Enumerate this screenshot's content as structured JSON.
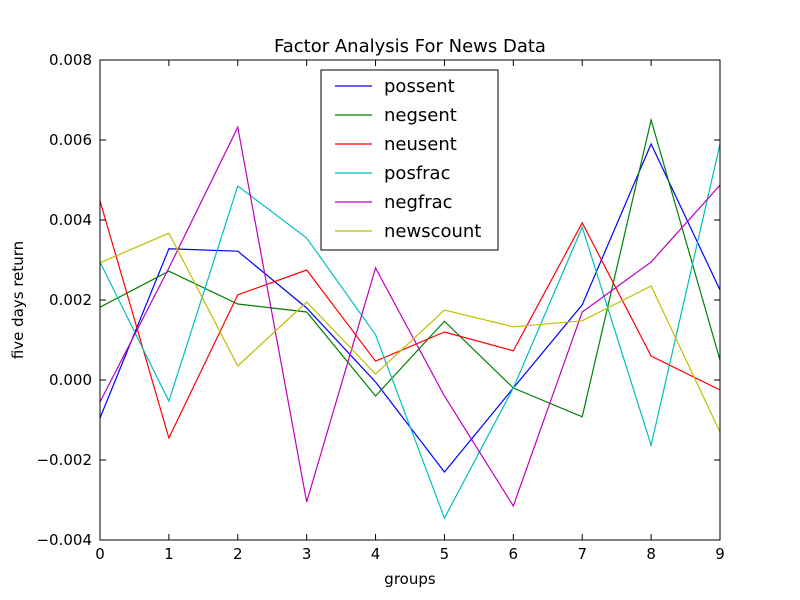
{
  "chart_data": {
    "type": "line",
    "title": "Factor Analysis For News Data",
    "xlabel": "groups",
    "ylabel": "five days return",
    "xlim": [
      0,
      9
    ],
    "ylim": [
      -0.004,
      0.008
    ],
    "x": [
      0,
      1,
      2,
      3,
      4,
      5,
      6,
      7,
      8,
      9
    ],
    "xticks": [
      0,
      1,
      2,
      3,
      4,
      5,
      6,
      7,
      8,
      9
    ],
    "yticks": [
      -0.004,
      -0.002,
      0.0,
      0.002,
      0.004,
      0.006,
      0.008
    ],
    "ytick_labels": [
      "−0.004",
      "−0.002",
      "0.000",
      "0.002",
      "0.004",
      "0.006",
      "0.008"
    ],
    "grid": false,
    "legend_position": "upper-center",
    "series": [
      {
        "name": "possent",
        "color": "#0000ff",
        "values": [
          -0.00095,
          0.00328,
          0.00322,
          0.0018,
          -5e-05,
          -0.0023,
          -0.0002,
          0.00188,
          0.0059,
          0.00225
        ]
      },
      {
        "name": "negsent",
        "color": "#008000",
        "values": [
          0.00182,
          0.00272,
          0.0019,
          0.0017,
          -0.0004,
          0.00147,
          -0.0002,
          -0.00092,
          0.0065,
          0.0005
        ]
      },
      {
        "name": "neusent",
        "color": "#ff0000",
        "values": [
          0.00448,
          -0.00145,
          0.00213,
          0.00275,
          0.00047,
          0.0012,
          0.00073,
          0.00393,
          0.0006,
          -0.00025
        ]
      },
      {
        "name": "posfrac",
        "color": "#00bfbf",
        "values": [
          0.00295,
          -0.00053,
          0.00485,
          0.00355,
          0.00113,
          -0.00345,
          -0.0002,
          0.00382,
          -0.00163,
          0.0059
        ]
      },
      {
        "name": "negfrac",
        "color": "#bf00bf",
        "values": [
          -0.00055,
          0.0028,
          0.00632,
          -0.00305,
          0.0028,
          -0.0004,
          -0.00315,
          0.0017,
          0.00295,
          0.00487
        ]
      },
      {
        "name": "newscount",
        "color": "#bfbf00",
        "values": [
          0.00293,
          0.00367,
          0.00035,
          0.00195,
          0.00015,
          0.00175,
          0.00133,
          0.00148,
          0.00235,
          -0.0013
        ]
      }
    ]
  }
}
